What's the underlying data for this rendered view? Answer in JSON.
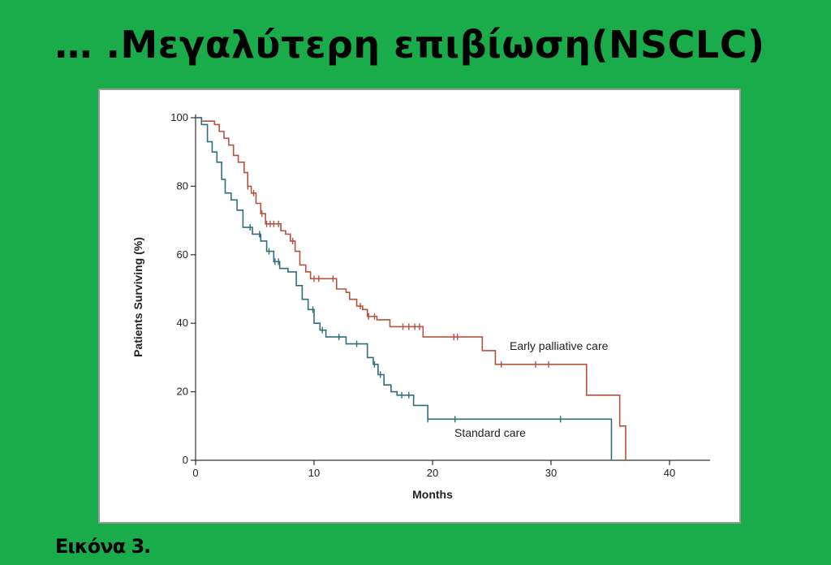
{
  "slide": {
    "title": "… .Μεγαλύτερη επιβίωση(NSCLC)",
    "caption": "Εικόνα 3."
  },
  "colors": {
    "background": "#1aab4b",
    "early_palliative": "#b5533f",
    "standard": "#2f6f7c",
    "axis": "#333333"
  },
  "chart_data": {
    "type": "line",
    "xlabel": "Months",
    "ylabel": "Patients Surviving (%)",
    "xlim": [
      0,
      40
    ],
    "ylim": [
      0,
      100
    ],
    "xticks": [
      0,
      10,
      20,
      30,
      40
    ],
    "yticks": [
      0,
      20,
      40,
      60,
      80,
      100
    ],
    "grid": false,
    "legend": "inline labels",
    "series": [
      {
        "name": "Early palliative care",
        "color": "#b5533f",
        "step_points": [
          [
            0,
            100
          ],
          [
            0.5,
            99
          ],
          [
            1.2,
            99
          ],
          [
            1.6,
            98
          ],
          [
            2,
            96
          ],
          [
            2.4,
            94
          ],
          [
            2.8,
            92
          ],
          [
            3.2,
            89
          ],
          [
            3.6,
            87
          ],
          [
            4.1,
            84
          ],
          [
            4.4,
            80
          ],
          [
            4.7,
            78
          ],
          [
            5.1,
            75
          ],
          [
            5.5,
            72
          ],
          [
            5.9,
            69
          ],
          [
            7.2,
            67
          ],
          [
            7.6,
            66
          ],
          [
            8.0,
            64
          ],
          [
            8.4,
            61
          ],
          [
            8.8,
            57
          ],
          [
            9.3,
            55
          ],
          [
            9.7,
            53
          ],
          [
            11.9,
            50
          ],
          [
            12.7,
            49
          ],
          [
            13.0,
            47
          ],
          [
            13.6,
            45
          ],
          [
            14.1,
            44
          ],
          [
            14.5,
            42
          ],
          [
            15.3,
            41
          ],
          [
            16.4,
            39
          ],
          [
            19.2,
            36
          ],
          [
            24.2,
            32
          ],
          [
            25.3,
            28
          ],
          [
            33.0,
            19
          ],
          [
            35.8,
            10
          ],
          [
            36.3,
            0
          ]
        ],
        "end_x": 36.3,
        "censor_x": [
          4.4,
          4.9,
          5.6,
          6.0,
          6.3,
          6.6,
          7.0,
          8.2,
          10.0,
          10.4,
          11.6,
          13.9,
          14.6,
          15.1,
          17.5,
          18.0,
          18.5,
          18.9,
          21.8,
          22.1,
          25.8,
          28.7,
          29.8
        ]
      },
      {
        "name": "Standard care",
        "color": "#2f6f7c",
        "step_points": [
          [
            0,
            100
          ],
          [
            0.5,
            98
          ],
          [
            1.0,
            93
          ],
          [
            1.4,
            90
          ],
          [
            1.8,
            87
          ],
          [
            2.2,
            82
          ],
          [
            2.5,
            78
          ],
          [
            3.0,
            76
          ],
          [
            3.5,
            73
          ],
          [
            4.0,
            68
          ],
          [
            4.8,
            66
          ],
          [
            5.5,
            64
          ],
          [
            6.0,
            61
          ],
          [
            6.6,
            58
          ],
          [
            7.1,
            56
          ],
          [
            7.8,
            55
          ],
          [
            8.5,
            51
          ],
          [
            9.0,
            47
          ],
          [
            9.5,
            44
          ],
          [
            10.0,
            40
          ],
          [
            10.5,
            38
          ],
          [
            11.0,
            36
          ],
          [
            12.7,
            34
          ],
          [
            14.5,
            30
          ],
          [
            15.0,
            28
          ],
          [
            15.4,
            25
          ],
          [
            15.9,
            22
          ],
          [
            16.5,
            20
          ],
          [
            17.0,
            19
          ],
          [
            18.4,
            16
          ],
          [
            19.6,
            12
          ],
          [
            35.1,
            0
          ]
        ],
        "end_x": 35.1,
        "censor_x": [
          4.6,
          5.4,
          6.2,
          6.7,
          7.0,
          9.9,
          10.7,
          12.1,
          13.6,
          15.1,
          15.6,
          17.4,
          18.0,
          19.6,
          21.9,
          30.8
        ]
      }
    ]
  }
}
